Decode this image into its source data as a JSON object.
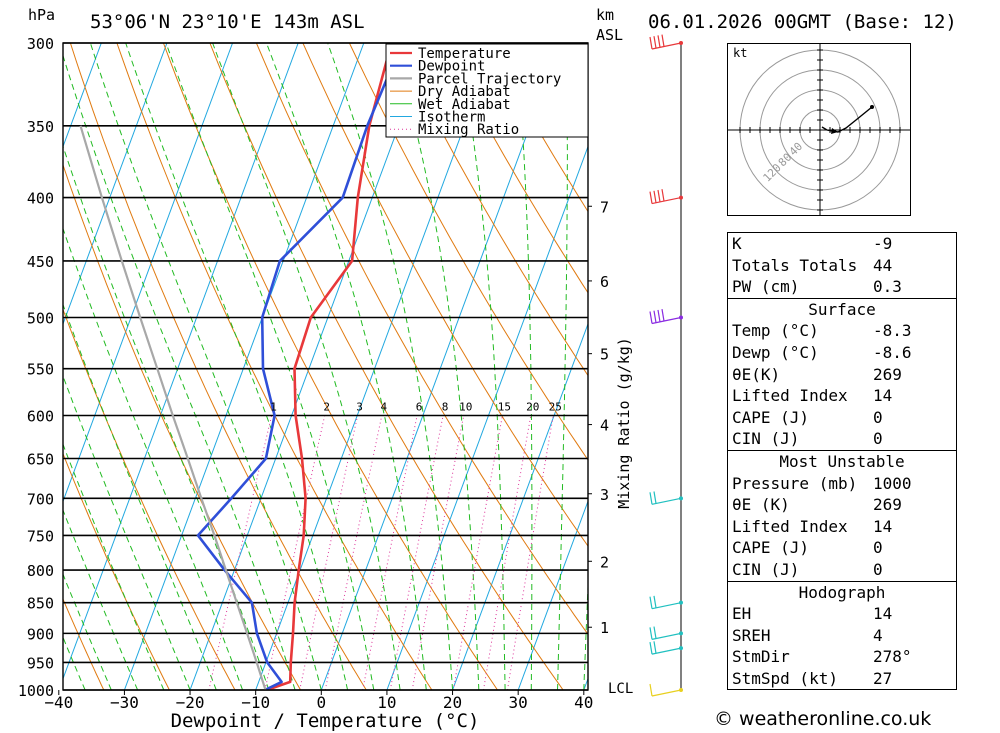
{
  "header": {
    "location": "53°06'N 23°10'E 143m ASL",
    "date_time": "06.01.2026 00GMT (Base: 12)",
    "pressure_unit": "hPa",
    "height_unit": "km",
    "height_unit_sub": "ASL"
  },
  "legend": [
    "Temperature",
    "Dewpoint",
    "Parcel Trajectory",
    "Dry Adiabat",
    "Wet Adiabat",
    "Isotherm",
    "Mixing Ratio"
  ],
  "colors": {
    "temperature": "#e8383a",
    "dewpoint": "#2f4fd8",
    "parcel": "#a8a8a8",
    "dry_adiabat": "#e07a10",
    "wet_adiabat": "#22bb22",
    "isotherm": "#22a8e0",
    "mixing_ratio": "#dd3399"
  },
  "chart_data": {
    "type": "line",
    "title": "Skew-T log-P diagram",
    "xlabel": "Dewpoint / Temperature (°C)",
    "ylabel": "hPa",
    "xlim": [
      -40,
      40
    ],
    "ylim": [
      1000,
      300
    ],
    "x_ticks": [
      -40,
      -30,
      -20,
      -10,
      0,
      10,
      20,
      30,
      40
    ],
    "x_tick_labels": [
      "−40",
      "−30",
      "−20",
      "−10",
      "0",
      "10",
      "20",
      "30",
      "40"
    ],
    "pressure_levels": [
      300,
      350,
      400,
      450,
      500,
      550,
      600,
      650,
      700,
      750,
      800,
      850,
      900,
      950,
      1000
    ],
    "height_ticks_km": [
      1,
      2,
      3,
      4,
      5,
      6,
      7
    ],
    "lcl_label": "LCL",
    "mixing_ratio_axis_label": "Mixing Ratio (g/kg)",
    "mixing_ratio_values": [
      "1",
      "2",
      "3",
      "4",
      "6",
      "8",
      "10",
      "15",
      "20",
      "25"
    ],
    "series": [
      {
        "name": "Temperature",
        "p": [
          1000,
          985,
          950,
          900,
          850,
          800,
          750,
          700,
          650,
          600,
          550,
          500,
          450,
          400,
          350,
          300
        ],
        "t": [
          -8.3,
          -5.2,
          -6.2,
          -7.5,
          -9.0,
          -10.2,
          -11.4,
          -13.2,
          -16.0,
          -19.4,
          -22.2,
          -22.6,
          -19.5,
          -22.2,
          -24.5,
          -25.8
        ]
      },
      {
        "name": "Dewpoint",
        "p": [
          1000,
          985,
          950,
          900,
          850,
          800,
          750,
          700,
          650,
          600,
          550,
          500,
          450,
          400,
          350,
          300
        ],
        "t": [
          -8.6,
          -6.5,
          -9.8,
          -13.0,
          -15.5,
          -21.5,
          -27.5,
          -24.5,
          -21.5,
          -22.6,
          -27.0,
          -30.0,
          -30.5,
          -24.5,
          -24.8,
          -24.2
        ]
      },
      {
        "name": "Parcel Trajectory",
        "p": [
          1000,
          950,
          900,
          850,
          800,
          750,
          700,
          650,
          600,
          550,
          500,
          450,
          400,
          350
        ],
        "t": [
          -8.5,
          -11.4,
          -14.5,
          -17.8,
          -21.3,
          -25.0,
          -29.1,
          -33.4,
          -38.1,
          -43.1,
          -48.6,
          -54.6,
          -61.2,
          -68.5
        ]
      }
    ]
  },
  "hodograph": {
    "unit": "kt",
    "ring_labels": [
      "40",
      "80",
      "120"
    ]
  },
  "indices": [
    {
      "k": "K",
      "v": "-9"
    },
    {
      "k": "Totals Totals",
      "v": "44"
    },
    {
      "k": "PW (cm)",
      "v": "0.3"
    }
  ],
  "surface": {
    "title": "Surface",
    "rows": [
      {
        "k": "Temp (°C)",
        "v": "-8.3"
      },
      {
        "k": "Dewp (°C)",
        "v": "-8.6"
      },
      {
        "k": "θE(K)",
        "v": "269"
      },
      {
        "k": "Lifted Index",
        "v": "14"
      },
      {
        "k": "CAPE (J)",
        "v": "0"
      },
      {
        "k": "CIN (J)",
        "v": "0"
      }
    ]
  },
  "most_unstable": {
    "title": "Most Unstable",
    "rows": [
      {
        "k": "Pressure (mb)",
        "v": "1000"
      },
      {
        "k": "θE (K)",
        "v": "269"
      },
      {
        "k": "Lifted Index",
        "v": "14"
      },
      {
        "k": "CAPE (J)",
        "v": "0"
      },
      {
        "k": "CIN (J)",
        "v": "0"
      }
    ]
  },
  "hodograph_box": {
    "title": "Hodograph",
    "rows": [
      {
        "k": "EH",
        "v": "14"
      },
      {
        "k": "SREH",
        "v": "4"
      },
      {
        "k": "StmDir",
        "v": "278°"
      },
      {
        "k": "StmSpd (kt)",
        "v": "27"
      }
    ]
  },
  "credit": "© weatheronline.co.uk"
}
